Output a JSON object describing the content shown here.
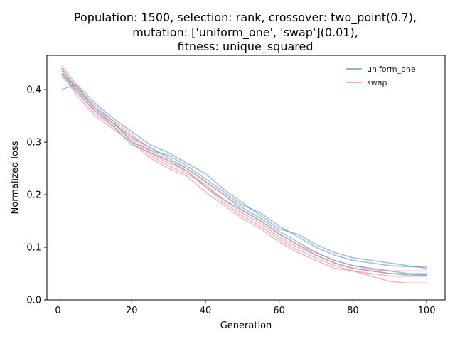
{
  "chart_data": {
    "type": "line",
    "title_lines": [
      "Population: 1500, selection: rank, crossover: two_point(0.7),",
      "mutation: ['uniform_one', 'swap'](0.01),",
      "fitness: unique_squared"
    ],
    "xlabel": "Generation",
    "ylabel": "Normalized loss",
    "xlim": [
      -3,
      105
    ],
    "ylim": [
      0,
      0.465
    ],
    "xticks": [
      0,
      20,
      40,
      60,
      80,
      100
    ],
    "yticks": [
      0.0,
      0.1,
      0.2,
      0.3,
      0.4
    ],
    "ytick_labels": [
      "0.0",
      "0.1",
      "0.2",
      "0.3",
      "0.4"
    ],
    "grid": false,
    "legend_position": "top-right",
    "series_colors": {
      "uniform_one": "#4a86b8",
      "swap": "#e8767e"
    },
    "series": [
      {
        "name": "uniform_one",
        "group": "uniform_one",
        "x": [
          1,
          5,
          10,
          15,
          20,
          25,
          30,
          35,
          40,
          45,
          50,
          55,
          60,
          65,
          70,
          75,
          80,
          85,
          90,
          95,
          100
        ],
        "values": [
          0.43,
          0.405,
          0.37,
          0.34,
          0.3,
          0.285,
          0.275,
          0.255,
          0.23,
          0.205,
          0.18,
          0.165,
          0.14,
          0.12,
          0.1,
          0.085,
          0.075,
          0.07,
          0.065,
          0.063,
          0.063
        ]
      },
      {
        "name": "",
        "group": "uniform_one",
        "x": [
          1,
          5,
          10,
          15,
          20,
          25,
          30,
          35,
          40,
          45,
          50,
          55,
          60,
          65,
          70,
          75,
          80,
          85,
          90,
          95,
          100
        ],
        "values": [
          0.44,
          0.4,
          0.365,
          0.335,
          0.31,
          0.29,
          0.27,
          0.25,
          0.225,
          0.2,
          0.175,
          0.155,
          0.13,
          0.11,
          0.09,
          0.075,
          0.065,
          0.06,
          0.055,
          0.05,
          0.047
        ]
      },
      {
        "name": "",
        "group": "uniform_one",
        "x": [
          1,
          5,
          10,
          15,
          20,
          25,
          30,
          35,
          40,
          45,
          50,
          55,
          60,
          65,
          70,
          75,
          80,
          85,
          90,
          95,
          100
        ],
        "values": [
          0.4,
          0.41,
          0.375,
          0.345,
          0.32,
          0.295,
          0.28,
          0.26,
          0.24,
          0.21,
          0.185,
          0.16,
          0.135,
          0.125,
          0.105,
          0.09,
          0.08,
          0.075,
          0.07,
          0.065,
          0.06
        ]
      },
      {
        "name": "",
        "group": "uniform_one",
        "x": [
          1,
          5,
          10,
          15,
          20,
          25,
          30,
          35,
          40,
          45,
          50,
          55,
          60,
          65,
          70,
          75,
          80,
          85,
          90,
          95,
          100
        ],
        "values": [
          0.435,
          0.395,
          0.36,
          0.33,
          0.295,
          0.28,
          0.265,
          0.245,
          0.215,
          0.19,
          0.17,
          0.15,
          0.125,
          0.105,
          0.085,
          0.07,
          0.06,
          0.055,
          0.05,
          0.047,
          0.047
        ]
      },
      {
        "name": "swap",
        "group": "swap",
        "x": [
          1,
          5,
          10,
          15,
          20,
          25,
          30,
          35,
          40,
          45,
          50,
          55,
          60,
          65,
          70,
          75,
          80,
          85,
          90,
          95,
          100
        ],
        "values": [
          0.445,
          0.41,
          0.36,
          0.335,
          0.31,
          0.28,
          0.26,
          0.245,
          0.215,
          0.185,
          0.16,
          0.14,
          0.115,
          0.095,
          0.08,
          0.065,
          0.055,
          0.045,
          0.035,
          0.032,
          0.032
        ]
      },
      {
        "name": "",
        "group": "swap",
        "x": [
          1,
          5,
          10,
          15,
          20,
          25,
          30,
          35,
          40,
          45,
          50,
          55,
          60,
          65,
          70,
          75,
          80,
          85,
          90,
          95,
          100
        ],
        "values": [
          0.425,
          0.4,
          0.355,
          0.33,
          0.305,
          0.275,
          0.255,
          0.24,
          0.22,
          0.19,
          0.165,
          0.145,
          0.12,
          0.1,
          0.085,
          0.07,
          0.06,
          0.055,
          0.05,
          0.05,
          0.05
        ]
      },
      {
        "name": "",
        "group": "swap",
        "x": [
          1,
          5,
          10,
          15,
          20,
          25,
          30,
          35,
          40,
          45,
          50,
          55,
          60,
          65,
          70,
          75,
          80,
          85,
          90,
          95,
          100
        ],
        "values": [
          0.43,
          0.39,
          0.35,
          0.325,
          0.3,
          0.27,
          0.25,
          0.235,
          0.205,
          0.18,
          0.155,
          0.135,
          0.11,
          0.09,
          0.075,
          0.06,
          0.055,
          0.05,
          0.045,
          0.045,
          0.045
        ]
      },
      {
        "name": "",
        "group": "swap",
        "x": [
          1,
          5,
          10,
          15,
          20,
          25,
          30,
          35,
          40,
          45,
          50,
          55,
          60,
          65,
          70,
          75,
          80,
          85,
          90,
          95,
          100
        ],
        "values": [
          0.44,
          0.405,
          0.365,
          0.34,
          0.315,
          0.285,
          0.265,
          0.25,
          0.225,
          0.2,
          0.17,
          0.15,
          0.125,
          0.105,
          0.09,
          0.075,
          0.065,
          0.058,
          0.055,
          0.055,
          0.055
        ]
      }
    ]
  }
}
